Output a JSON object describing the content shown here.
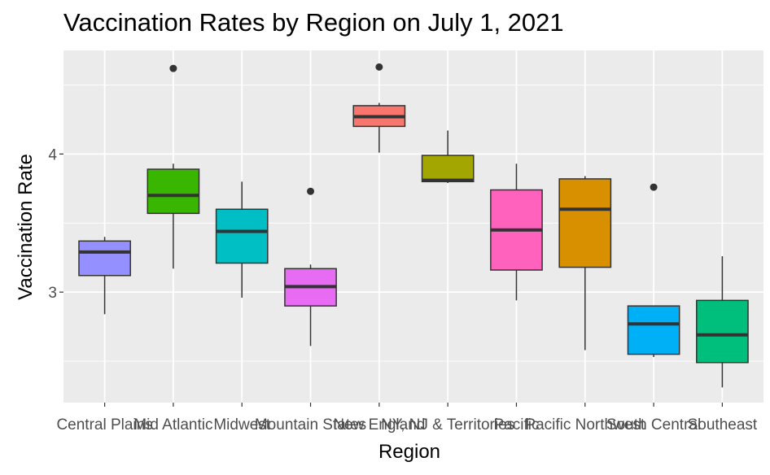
{
  "chart_data": {
    "type": "boxplot",
    "title": "Vaccination Rates by Region on July 1, 2021",
    "xlabel": "Region",
    "ylabel": "Vaccination Rate",
    "ylim": [
      2.2,
      4.75
    ],
    "y_ticks": [
      3,
      4
    ],
    "grid": true,
    "legend": "none",
    "categories": [
      "Central Plains",
      "Mid Atlantic",
      "Midwest",
      "Mountain States",
      "New England",
      "NY, NJ & Territories",
      "Pacific",
      "Pacific Northwest",
      "South Central",
      "Southeast"
    ],
    "boxes": [
      {
        "category": "Central Plains",
        "min": 2.84,
        "q1": 3.12,
        "median": 3.29,
        "q3": 3.37,
        "max": 3.4,
        "outliers": [],
        "color": "#9590FF"
      },
      {
        "category": "Mid Atlantic",
        "min": 3.17,
        "q1": 3.57,
        "median": 3.7,
        "q3": 3.89,
        "max": 3.93,
        "outliers": [
          4.62
        ],
        "color": "#39B600"
      },
      {
        "category": "Midwest",
        "min": 2.96,
        "q1": 3.21,
        "median": 3.44,
        "q3": 3.6,
        "max": 3.8,
        "outliers": [],
        "color": "#00BFC4"
      },
      {
        "category": "Mountain States",
        "min": 2.61,
        "q1": 2.9,
        "median": 3.04,
        "q3": 3.17,
        "max": 3.2,
        "outliers": [
          3.73
        ],
        "color": "#E76BF3"
      },
      {
        "category": "New England",
        "min": 4.01,
        "q1": 4.2,
        "median": 4.27,
        "q3": 4.35,
        "max": 4.37,
        "outliers": [
          4.63
        ],
        "color": "#F8766D"
      },
      {
        "category": "NY, NJ & Territories",
        "min": 3.79,
        "q1": 3.8,
        "median": 3.81,
        "q3": 3.99,
        "max": 4.17,
        "outliers": [],
        "color": "#A3A500"
      },
      {
        "category": "Pacific",
        "min": 2.94,
        "q1": 3.16,
        "median": 3.45,
        "q3": 3.74,
        "max": 3.93,
        "outliers": [],
        "color": "#FF62BC"
      },
      {
        "category": "Pacific Northwest",
        "min": 2.58,
        "q1": 3.18,
        "median": 3.6,
        "q3": 3.82,
        "max": 3.84,
        "outliers": [],
        "color": "#D89000"
      },
      {
        "category": "South Central",
        "min": 2.53,
        "q1": 2.55,
        "median": 2.77,
        "q3": 2.9,
        "max": 2.9,
        "outliers": [
          3.76
        ],
        "color": "#00B0F6"
      },
      {
        "category": "Southeast",
        "min": 2.31,
        "q1": 2.49,
        "median": 2.69,
        "q3": 2.94,
        "max": 3.26,
        "outliers": [],
        "color": "#00BF7D"
      }
    ]
  }
}
